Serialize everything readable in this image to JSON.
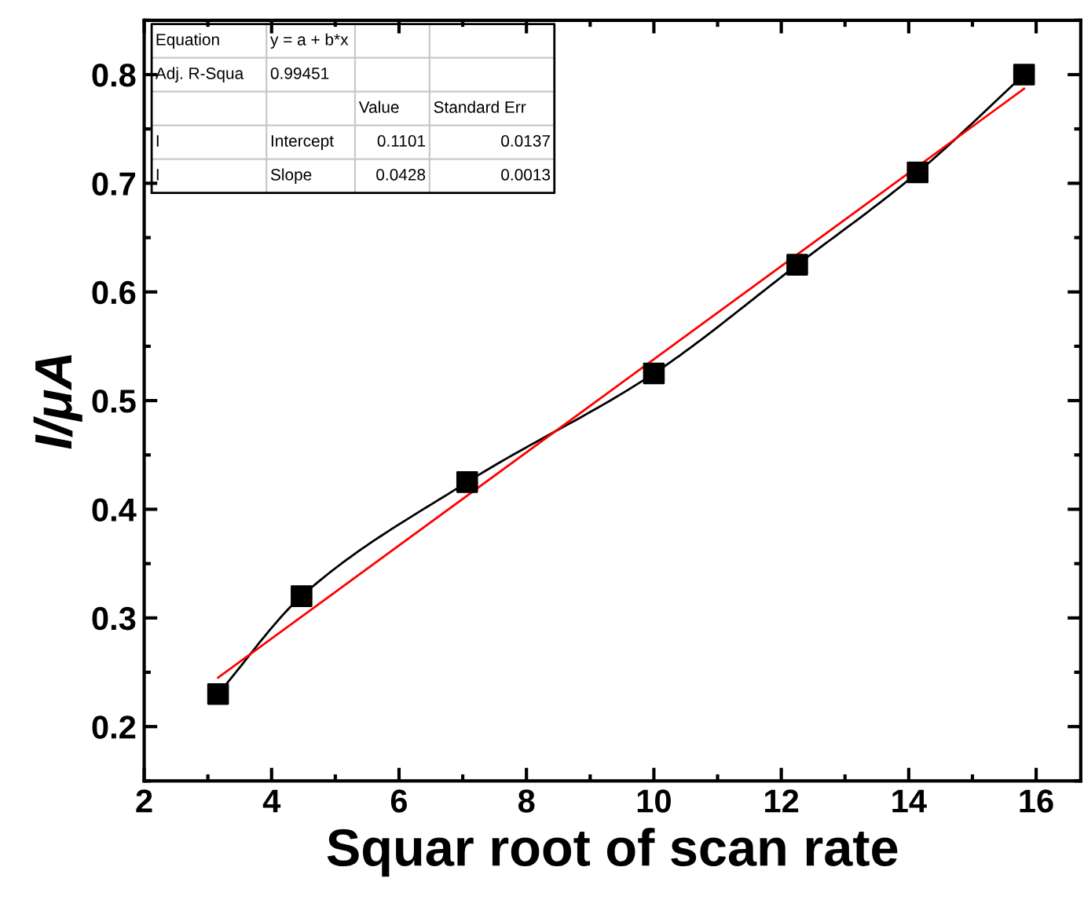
{
  "chart_data": {
    "type": "line",
    "xlabel": "Squar root of scan rate",
    "ylabel": "I/μA",
    "series": [
      {
        "color": "#000000",
        "marker": "square",
        "x": [
          3.16,
          4.47,
          7.07,
          10.0,
          12.25,
          14.14,
          15.81
        ],
        "values": [
          0.23,
          0.32,
          0.425,
          0.525,
          0.625,
          0.71,
          0.8
        ]
      },
      {
        "color": "#ff0000",
        "marker": "none",
        "x": [
          3.16,
          15.81
        ],
        "values": [
          0.245,
          0.787
        ]
      }
    ],
    "xlim": [
      2,
      16.7
    ],
    "xticks": [
      2,
      4,
      6,
      8,
      10,
      12,
      14,
      16
    ],
    "ylim": [
      0.15,
      0.85
    ],
    "yticks": [
      0.2,
      0.3,
      0.4,
      0.5,
      0.6,
      0.7,
      0.8
    ],
    "annotations": [
      "Equation",
      "y = a + b*x",
      "Adj. R-Squa",
      "0.99451",
      "Value",
      "Standard Err",
      "I",
      "Intercept",
      "0.1101",
      "0.0137",
      "I",
      "Slope",
      "0.0428",
      "0.0013"
    ]
  }
}
